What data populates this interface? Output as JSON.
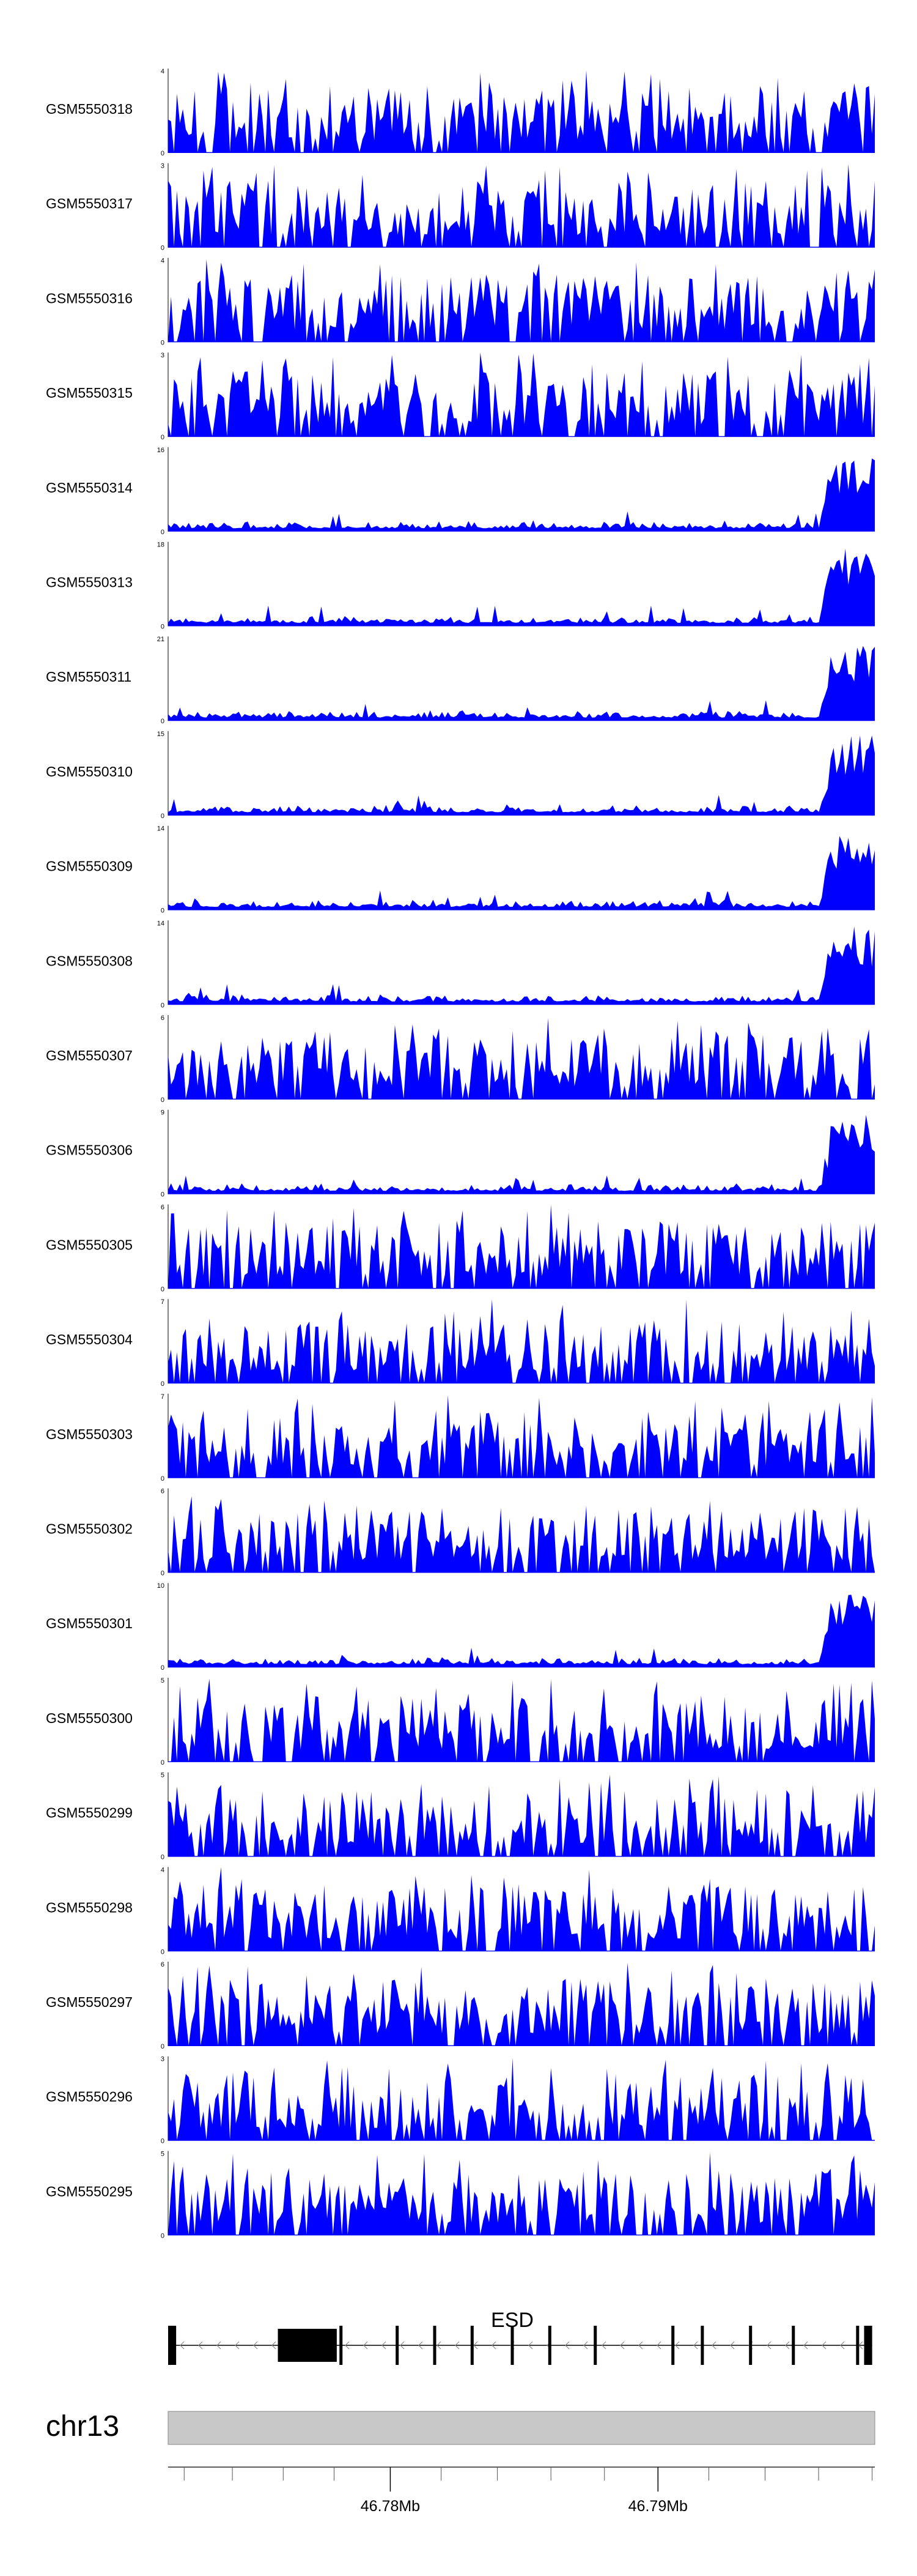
{
  "chart_data": {
    "type": "area",
    "colors": {
      "signal": "#0000ff",
      "gene": "#000000",
      "ideogram": "#c8c8c8",
      "axis": "#000000"
    },
    "tracks": [
      {
        "name": "GSM5550318",
        "ymax": 4,
        "ymin": 0
      },
      {
        "name": "GSM5550317",
        "ymax": 3,
        "ymin": 0
      },
      {
        "name": "GSM5550316",
        "ymax": 4,
        "ymin": 0
      },
      {
        "name": "GSM5550315",
        "ymax": 3,
        "ymin": 0
      },
      {
        "name": "GSM5550314",
        "ymax": 16,
        "ymin": 0
      },
      {
        "name": "GSM5550313",
        "ymax": 18,
        "ymin": 0
      },
      {
        "name": "GSM5550311",
        "ymax": 21,
        "ymin": 0
      },
      {
        "name": "GSM5550310",
        "ymax": 15,
        "ymin": 0
      },
      {
        "name": "GSM5550309",
        "ymax": 14,
        "ymin": 0
      },
      {
        "name": "GSM5550308",
        "ymax": 14,
        "ymin": 0
      },
      {
        "name": "GSM5550307",
        "ymax": 6,
        "ymin": 0
      },
      {
        "name": "GSM5550306",
        "ymax": 9,
        "ymin": 0
      },
      {
        "name": "GSM5550305",
        "ymax": 6,
        "ymin": 0
      },
      {
        "name": "GSM5550304",
        "ymax": 7,
        "ymin": 0
      },
      {
        "name": "GSM5550303",
        "ymax": 7,
        "ymin": 0
      },
      {
        "name": "GSM5550302",
        "ymax": 6,
        "ymin": 0
      },
      {
        "name": "GSM5550301",
        "ymax": 10,
        "ymin": 0
      },
      {
        "name": "GSM5550300",
        "ymax": 5,
        "ymin": 0
      },
      {
        "name": "GSM5550299",
        "ymax": 5,
        "ymin": 0
      },
      {
        "name": "GSM5550298",
        "ymax": 4,
        "ymin": 0
      },
      {
        "name": "GSM5550297",
        "ymax": 6,
        "ymin": 0
      },
      {
        "name": "GSM5550296",
        "ymax": 3,
        "ymin": 0
      },
      {
        "name": "GSM5550295",
        "ymax": 5,
        "ymin": 0
      }
    ],
    "gene": {
      "name": "ESD",
      "strand": "-",
      "start_mb": 46.7717,
      "end_mb": 46.798,
      "exons_mb": [
        [
          46.7717,
          46.772
        ],
        [
          46.7758,
          46.778
        ],
        [
          46.7781,
          46.7782
        ],
        [
          46.7802,
          46.7803
        ],
        [
          46.7816,
          46.7817
        ],
        [
          46.783,
          46.7831
        ],
        [
          46.7845,
          46.7846
        ],
        [
          46.7859,
          46.786
        ],
        [
          46.7876,
          46.7877
        ],
        [
          46.7905,
          46.7906
        ],
        [
          46.7916,
          46.7917
        ],
        [
          46.7934,
          46.7935
        ],
        [
          46.795,
          46.7951
        ],
        [
          46.7974,
          46.7975
        ],
        [
          46.7977,
          46.798
        ]
      ]
    },
    "chromosome": "chr13",
    "x_axis": {
      "range_mb": [
        46.7717,
        46.7981
      ],
      "tick_labels": [
        {
          "mb": 46.78,
          "label": "46.78Mb"
        },
        {
          "mb": 46.79,
          "label": "46.79Mb"
        }
      ],
      "minor_ticks_mb": [
        46.7723,
        46.7741,
        46.776,
        46.7779,
        46.78,
        46.7819,
        46.784,
        46.786,
        46.788,
        46.79,
        46.7919,
        46.794,
        46.796,
        46.798
      ]
    }
  }
}
